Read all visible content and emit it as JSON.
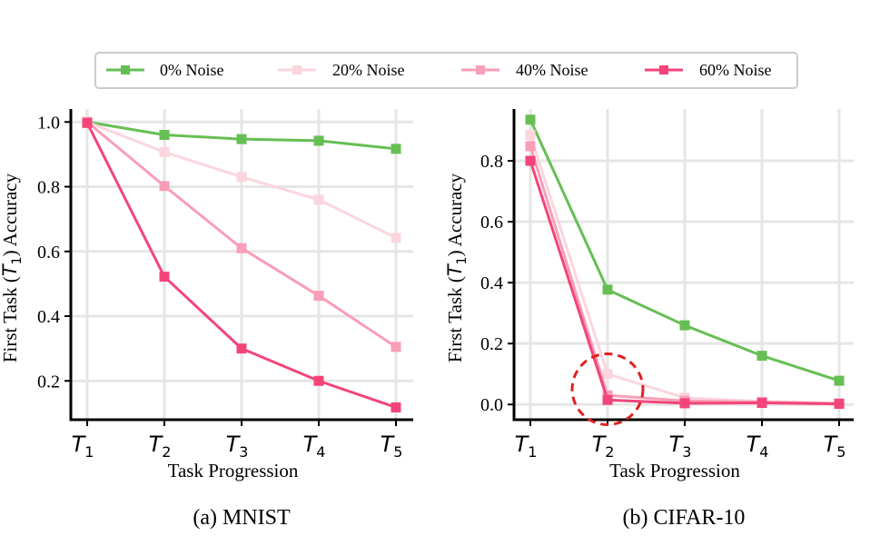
{
  "legend": [
    {
      "name": "0% Noise",
      "color": "#66bf53"
    },
    {
      "name": "20% Noise",
      "color": "#fcd5df"
    },
    {
      "name": "40% Noise",
      "color": "#f99eb7"
    },
    {
      "name": "60% Noise",
      "color": "#f3457a"
    }
  ],
  "chart_data": [
    {
      "type": "line",
      "caption": "(a) MNIST",
      "xlabel": "Task Progression",
      "ylabel": "First Task (T1) Accuracy",
      "x_ticks": [
        "T1",
        "T2",
        "T3",
        "T4",
        "T5"
      ],
      "ylim": [
        0.08,
        1.04
      ],
      "y_ticks": [
        0.2,
        0.4,
        0.6,
        0.8,
        1.0
      ],
      "y_tick_labels": [
        "0.2",
        "0.4",
        "0.6",
        "0.8",
        "1.0"
      ],
      "grid": true,
      "series": [
        {
          "name": "0% Noise",
          "values": [
            1.0,
            0.96,
            0.947,
            0.942,
            0.917
          ]
        },
        {
          "name": "20% Noise",
          "values": [
            1.0,
            0.907,
            0.83,
            0.76,
            0.642
          ]
        },
        {
          "name": "40% Noise",
          "values": [
            1.0,
            0.802,
            0.61,
            0.463,
            0.305
          ]
        },
        {
          "name": "60% Noise",
          "values": [
            0.997,
            0.522,
            0.3,
            0.2,
            0.118
          ]
        }
      ]
    },
    {
      "type": "line",
      "caption": "(b) CIFAR-10",
      "xlabel": "Task Progression",
      "ylabel": "First Task (T1) Accuracy",
      "x_ticks": [
        "T1",
        "T2",
        "T3",
        "T4",
        "T5"
      ],
      "ylim": [
        -0.05,
        0.97
      ],
      "y_ticks": [
        0.0,
        0.2,
        0.4,
        0.6,
        0.8
      ],
      "y_tick_labels": [
        "0.0",
        "0.2",
        "0.4",
        "0.6",
        "0.8"
      ],
      "grid": true,
      "series": [
        {
          "name": "0% Noise",
          "values": [
            0.935,
            0.377,
            0.26,
            0.16,
            0.078
          ]
        },
        {
          "name": "20% Noise",
          "values": [
            0.885,
            0.1,
            0.022,
            0.01,
            0.005
          ]
        },
        {
          "name": "40% Noise",
          "values": [
            0.848,
            0.03,
            0.012,
            0.008,
            0.003
          ]
        },
        {
          "name": "60% Noise",
          "values": [
            0.8,
            0.015,
            0.004,
            0.005,
            0.002
          ]
        }
      ],
      "annotation": {
        "type": "dashed-circle",
        "at_x": "T2",
        "at_y": 0.05,
        "color": "#e02020"
      }
    }
  ]
}
